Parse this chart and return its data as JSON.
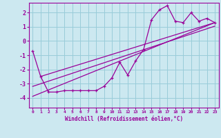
{
  "xlabel": "Windchill (Refroidissement éolien,°C)",
  "xlim": [
    -0.5,
    23.5
  ],
  "ylim": [
    -4.7,
    2.7
  ],
  "yticks": [
    -4,
    -3,
    -2,
    -1,
    0,
    1,
    2
  ],
  "background_color": "#cce8f0",
  "grid_color": "#99ccd9",
  "line_color": "#990099",
  "data_x": [
    0,
    1,
    2,
    3,
    4,
    5,
    6,
    7,
    8,
    9,
    10,
    11,
    12,
    13,
    14,
    15,
    16,
    17,
    18,
    19,
    20,
    21,
    22,
    23
  ],
  "data_y": [
    -0.7,
    -2.5,
    -3.6,
    -3.6,
    -3.5,
    -3.5,
    -3.5,
    -3.5,
    -3.5,
    -3.2,
    -2.6,
    -1.5,
    -2.4,
    -1.4,
    -0.6,
    1.5,
    2.2,
    2.5,
    1.4,
    1.3,
    2.0,
    1.4,
    1.6,
    1.3
  ],
  "trend1_x": [
    0,
    23
  ],
  "trend1_y": [
    -3.9,
    1.3
  ],
  "trend2_x": [
    0,
    23
  ],
  "trend2_y": [
    -3.2,
    1.05
  ],
  "trend3_x": [
    1,
    23
  ],
  "trend3_y": [
    -2.5,
    1.3
  ]
}
